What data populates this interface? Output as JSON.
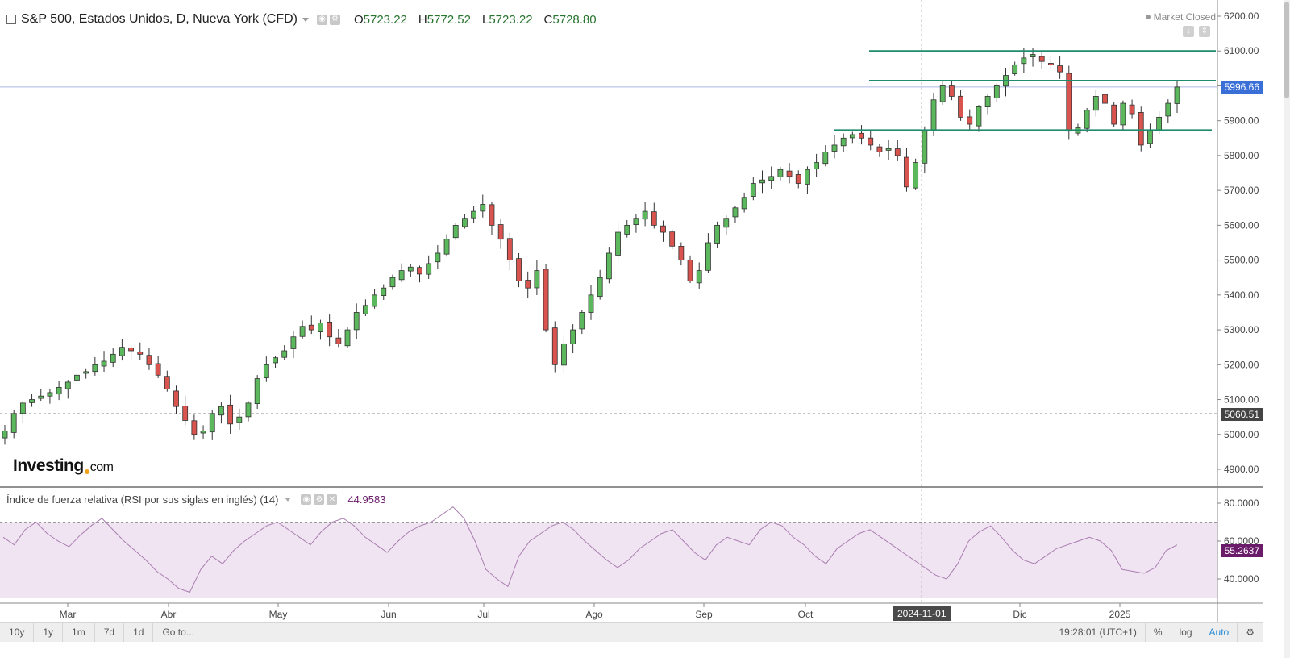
{
  "header": {
    "symbol_title": "S&P 500, Estados Unidos, D, Nueva York (CFD)",
    "ohlc": [
      {
        "key": "O",
        "value": "5723.22"
      },
      {
        "key": "H",
        "value": "5772.52"
      },
      {
        "key": "L",
        "value": "5723.22"
      },
      {
        "key": "C",
        "value": "5728.80"
      }
    ],
    "market_status": "Market Closed"
  },
  "logo": {
    "brand": "Investing",
    "suffix": "com"
  },
  "price_axis": {
    "ticks": [
      "6200.00",
      "6100.00",
      "6000.00",
      "5900.00",
      "5800.00",
      "5700.00",
      "5600.00",
      "5500.00",
      "5400.00",
      "5300.00",
      "5200.00",
      "5100.00",
      "5000.00",
      "4900.00"
    ],
    "current_price": "5996.66",
    "marker_price": "5060.51"
  },
  "rsi": {
    "title": "Índice de fuerza relativa (RSI por sus siglas en inglés) (14)",
    "value": "44.9583",
    "axis_ticks": [
      "80.0000",
      "60.0000",
      "40.0000"
    ],
    "current": "55.2637"
  },
  "time_axis": {
    "labels": [
      "Mar",
      "Abr",
      "May",
      "Jun",
      "Jul",
      "Ago",
      "Sep",
      "Oct",
      "Dic",
      "2025"
    ],
    "crosshair_date": "2024-11-01"
  },
  "bottom_bar": {
    "periods": [
      "10y",
      "1y",
      "1m",
      "7d",
      "1d",
      "Go to..."
    ],
    "clock": "19:28:01 (UTC+1)",
    "percent": "%",
    "log": "log",
    "auto": "Auto"
  },
  "colors": {
    "up": "#5cb85c",
    "down": "#d9534f",
    "rsi_fill": "#f0e3f2",
    "rsi_line": "#a97fb0",
    "level_line": "#1e8c6c",
    "current_tag": "#3b6fd8",
    "rsi_tag": "#6a1b6a"
  },
  "chart_data": {
    "type": "candlestick",
    "series_name": "S&P 500",
    "ylim": [
      4850,
      6250
    ],
    "support_resistance": [
      6100,
      6015,
      5873
    ],
    "closes_approx": [
      5010,
      5060,
      5090,
      5100,
      5110,
      5120,
      5135,
      5150,
      5170,
      5180,
      5200,
      5210,
      5230,
      5250,
      5240,
      5230,
      5200,
      5170,
      5130,
      5080,
      5040,
      5000,
      5010,
      5060,
      5080,
      5030,
      5050,
      5090,
      5160,
      5200,
      5220,
      5240,
      5280,
      5310,
      5300,
      5320,
      5280,
      5260,
      5300,
      5350,
      5370,
      5400,
      5420,
      5450,
      5470,
      5480,
      5460,
      5490,
      5520,
      5560,
      5600,
      5620,
      5640,
      5660,
      5600,
      5560,
      5500,
      5440,
      5420,
      5470,
      5300,
      5200,
      5260,
      5300,
      5350,
      5400,
      5450,
      5520,
      5580,
      5600,
      5620,
      5640,
      5600,
      5580,
      5540,
      5500,
      5440,
      5470,
      5550,
      5600,
      5620,
      5650,
      5680,
      5720,
      5730,
      5740,
      5760,
      5740,
      5720,
      5760,
      5780,
      5810,
      5830,
      5850,
      5860,
      5850,
      5830,
      5810,
      5820,
      5800,
      5710,
      5780,
      5870,
      5960,
      6000,
      5970,
      5910,
      5890,
      5940,
      5970,
      6000,
      6030,
      6060,
      6080,
      6090,
      6070,
      6060,
      6040,
      5870,
      5880,
      5930,
      5970,
      5950,
      5890,
      5950,
      5920,
      5830,
      5870,
      5910,
      5950,
      5996.66
    ],
    "rsi_approx": [
      62,
      58,
      66,
      70,
      64,
      60,
      57,
      63,
      68,
      72,
      66,
      60,
      55,
      50,
      44,
      40,
      35,
      33,
      45,
      52,
      48,
      55,
      60,
      64,
      68,
      70,
      66,
      62,
      58,
      65,
      70,
      72,
      68,
      62,
      58,
      54,
      60,
      65,
      68,
      70,
      74,
      78,
      72,
      60,
      45,
      40,
      36,
      52,
      60,
      64,
      68,
      70,
      66,
      60,
      55,
      50,
      46,
      50,
      56,
      60,
      64,
      66,
      60,
      54,
      50,
      58,
      62,
      60,
      58,
      66,
      70,
      68,
      62,
      58,
      52,
      48,
      56,
      60,
      64,
      66,
      62,
      58,
      54,
      50,
      46,
      42,
      40,
      48,
      60,
      65,
      68,
      62,
      55,
      50,
      48,
      52,
      56,
      58,
      60,
      62,
      60,
      55,
      45,
      44,
      43,
      46,
      55,
      58
    ],
    "title": "S&P 500, Estados Unidos, D, Nueva York (CFD)"
  }
}
